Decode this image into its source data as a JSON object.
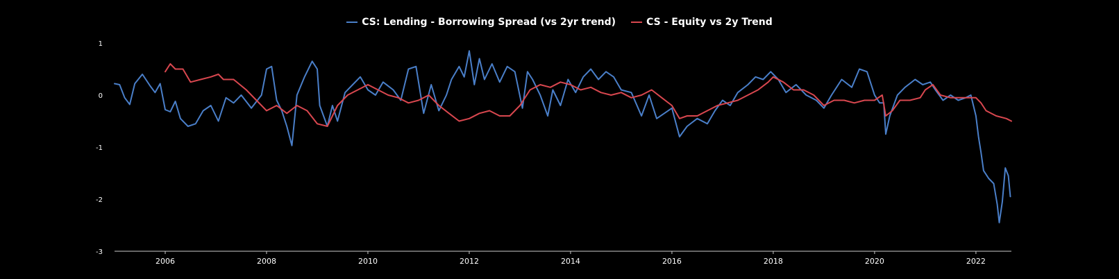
{
  "chart_data": {
    "type": "line",
    "legend_placement": "top-center",
    "grid": false,
    "xlim": [
      2005.0,
      2022.7
    ],
    "ylim": [
      -3,
      1
    ],
    "x_ticks": [
      2006,
      2008,
      2010,
      2012,
      2014,
      2016,
      2018,
      2020,
      2022
    ],
    "y_ticks": [
      1,
      0,
      -1,
      -2,
      -3
    ],
    "x_tick_labels": [
      "2006",
      "2008",
      "2010",
      "2012",
      "2014",
      "2016",
      "2018",
      "2020",
      "2022"
    ],
    "y_tick_labels": [
      "1",
      "0",
      "-1",
      "-2",
      "-3"
    ],
    "series": [
      {
        "name": "CS: Lending - Borrowing Spread (vs 2yr trend)",
        "color": "#4a7fc9",
        "points": [
          [
            2005.0,
            0.22
          ],
          [
            2005.1,
            0.2
          ],
          [
            2005.2,
            -0.05
          ],
          [
            2005.3,
            -0.18
          ],
          [
            2005.4,
            0.22
          ],
          [
            2005.55,
            0.4
          ],
          [
            2005.7,
            0.18
          ],
          [
            2005.8,
            0.05
          ],
          [
            2005.9,
            0.22
          ],
          [
            2006.0,
            -0.28
          ],
          [
            2006.1,
            -0.32
          ],
          [
            2006.2,
            -0.12
          ],
          [
            2006.3,
            -0.45
          ],
          [
            2006.45,
            -0.6
          ],
          [
            2006.6,
            -0.55
          ],
          [
            2006.75,
            -0.3
          ],
          [
            2006.9,
            -0.2
          ],
          [
            2007.05,
            -0.5
          ],
          [
            2007.2,
            -0.05
          ],
          [
            2007.35,
            -0.15
          ],
          [
            2007.5,
            0.0
          ],
          [
            2007.7,
            -0.25
          ],
          [
            2007.9,
            0.0
          ],
          [
            2008.0,
            0.5
          ],
          [
            2008.1,
            0.55
          ],
          [
            2008.2,
            -0.1
          ],
          [
            2008.3,
            -0.3
          ],
          [
            2008.4,
            -0.6
          ],
          [
            2008.5,
            -0.97
          ],
          [
            2008.6,
            0.0
          ],
          [
            2008.75,
            0.35
          ],
          [
            2008.9,
            0.65
          ],
          [
            2009.0,
            0.5
          ],
          [
            2009.05,
            -0.2
          ],
          [
            2009.2,
            -0.6
          ],
          [
            2009.3,
            -0.2
          ],
          [
            2009.4,
            -0.5
          ],
          [
            2009.55,
            0.05
          ],
          [
            2009.7,
            0.2
          ],
          [
            2009.85,
            0.35
          ],
          [
            2010.0,
            0.1
          ],
          [
            2010.15,
            0.0
          ],
          [
            2010.3,
            0.25
          ],
          [
            2010.5,
            0.1
          ],
          [
            2010.65,
            -0.1
          ],
          [
            2010.8,
            0.5
          ],
          [
            2010.95,
            0.55
          ],
          [
            2011.1,
            -0.35
          ],
          [
            2011.25,
            0.2
          ],
          [
            2011.4,
            -0.3
          ],
          [
            2011.55,
            0.0
          ],
          [
            2011.65,
            0.3
          ],
          [
            2011.8,
            0.55
          ],
          [
            2011.9,
            0.35
          ],
          [
            2012.0,
            0.85
          ],
          [
            2012.1,
            0.2
          ],
          [
            2012.2,
            0.7
          ],
          [
            2012.3,
            0.3
          ],
          [
            2012.45,
            0.6
          ],
          [
            2012.6,
            0.25
          ],
          [
            2012.75,
            0.55
          ],
          [
            2012.9,
            0.45
          ],
          [
            2013.05,
            -0.25
          ],
          [
            2013.15,
            0.45
          ],
          [
            2013.25,
            0.3
          ],
          [
            2013.4,
            0.0
          ],
          [
            2013.55,
            -0.4
          ],
          [
            2013.65,
            0.1
          ],
          [
            2013.8,
            -0.2
          ],
          [
            2013.95,
            0.3
          ],
          [
            2014.1,
            0.05
          ],
          [
            2014.25,
            0.35
          ],
          [
            2014.4,
            0.5
          ],
          [
            2014.55,
            0.3
          ],
          [
            2014.7,
            0.45
          ],
          [
            2014.85,
            0.35
          ],
          [
            2015.0,
            0.1
          ],
          [
            2015.2,
            0.05
          ],
          [
            2015.4,
            -0.4
          ],
          [
            2015.55,
            0.0
          ],
          [
            2015.7,
            -0.45
          ],
          [
            2015.85,
            -0.35
          ],
          [
            2016.0,
            -0.25
          ],
          [
            2016.15,
            -0.8
          ],
          [
            2016.3,
            -0.6
          ],
          [
            2016.5,
            -0.45
          ],
          [
            2016.7,
            -0.55
          ],
          [
            2016.85,
            -0.3
          ],
          [
            2017.0,
            -0.1
          ],
          [
            2017.15,
            -0.2
          ],
          [
            2017.3,
            0.05
          ],
          [
            2017.5,
            0.2
          ],
          [
            2017.65,
            0.35
          ],
          [
            2017.8,
            0.3
          ],
          [
            2017.95,
            0.45
          ],
          [
            2018.1,
            0.3
          ],
          [
            2018.25,
            0.05
          ],
          [
            2018.45,
            0.2
          ],
          [
            2018.65,
            0.0
          ],
          [
            2018.85,
            -0.1
          ],
          [
            2019.0,
            -0.25
          ],
          [
            2019.15,
            0.0
          ],
          [
            2019.35,
            0.3
          ],
          [
            2019.55,
            0.15
          ],
          [
            2019.7,
            0.5
          ],
          [
            2019.85,
            0.45
          ],
          [
            2020.0,
            0.0
          ],
          [
            2020.1,
            -0.15
          ],
          [
            2020.18,
            -0.15
          ],
          [
            2020.22,
            -0.75
          ],
          [
            2020.3,
            -0.4
          ],
          [
            2020.45,
            0.0
          ],
          [
            2020.6,
            0.15
          ],
          [
            2020.8,
            0.3
          ],
          [
            2020.95,
            0.2
          ],
          [
            2021.1,
            0.25
          ],
          [
            2021.2,
            0.1
          ],
          [
            2021.35,
            -0.1
          ],
          [
            2021.5,
            0.0
          ],
          [
            2021.65,
            -0.1
          ],
          [
            2021.8,
            -0.05
          ],
          [
            2021.9,
            0.0
          ],
          [
            2022.0,
            -0.4
          ],
          [
            2022.05,
            -0.8
          ],
          [
            2022.1,
            -1.1
          ],
          [
            2022.15,
            -1.45
          ],
          [
            2022.25,
            -1.6
          ],
          [
            2022.35,
            -1.7
          ],
          [
            2022.42,
            -2.1
          ],
          [
            2022.46,
            -2.45
          ],
          [
            2022.52,
            -2.05
          ],
          [
            2022.58,
            -1.4
          ],
          [
            2022.64,
            -1.55
          ],
          [
            2022.68,
            -1.95
          ]
        ]
      },
      {
        "name": "CS - Equity vs 2y Trend",
        "color": "#d9474f",
        "points": [
          [
            2006.0,
            0.45
          ],
          [
            2006.1,
            0.6
          ],
          [
            2006.2,
            0.5
          ],
          [
            2006.35,
            0.5
          ],
          [
            2006.5,
            0.25
          ],
          [
            2006.7,
            0.3
          ],
          [
            2006.9,
            0.35
          ],
          [
            2007.05,
            0.4
          ],
          [
            2007.15,
            0.3
          ],
          [
            2007.35,
            0.3
          ],
          [
            2007.6,
            0.1
          ],
          [
            2007.8,
            -0.1
          ],
          [
            2008.0,
            -0.3
          ],
          [
            2008.2,
            -0.2
          ],
          [
            2008.4,
            -0.35
          ],
          [
            2008.6,
            -0.2
          ],
          [
            2008.8,
            -0.3
          ],
          [
            2009.0,
            -0.55
          ],
          [
            2009.2,
            -0.6
          ],
          [
            2009.4,
            -0.2
          ],
          [
            2009.6,
            0.0
          ],
          [
            2009.8,
            0.1
          ],
          [
            2010.0,
            0.2
          ],
          [
            2010.2,
            0.1
          ],
          [
            2010.4,
            0.0
          ],
          [
            2010.6,
            -0.05
          ],
          [
            2010.8,
            -0.15
          ],
          [
            2011.0,
            -0.1
          ],
          [
            2011.2,
            0.0
          ],
          [
            2011.4,
            -0.2
          ],
          [
            2011.6,
            -0.35
          ],
          [
            2011.8,
            -0.5
          ],
          [
            2012.0,
            -0.45
          ],
          [
            2012.2,
            -0.35
          ],
          [
            2012.4,
            -0.3
          ],
          [
            2012.6,
            -0.4
          ],
          [
            2012.8,
            -0.4
          ],
          [
            2013.0,
            -0.2
          ],
          [
            2013.2,
            0.1
          ],
          [
            2013.4,
            0.2
          ],
          [
            2013.6,
            0.15
          ],
          [
            2013.8,
            0.25
          ],
          [
            2014.0,
            0.2
          ],
          [
            2014.2,
            0.1
          ],
          [
            2014.4,
            0.15
          ],
          [
            2014.6,
            0.05
          ],
          [
            2014.8,
            0.0
          ],
          [
            2015.0,
            0.05
          ],
          [
            2015.2,
            -0.05
          ],
          [
            2015.4,
            0.0
          ],
          [
            2015.6,
            0.1
          ],
          [
            2015.8,
            -0.05
          ],
          [
            2016.0,
            -0.2
          ],
          [
            2016.15,
            -0.45
          ],
          [
            2016.3,
            -0.4
          ],
          [
            2016.5,
            -0.4
          ],
          [
            2016.7,
            -0.3
          ],
          [
            2016.9,
            -0.2
          ],
          [
            2017.1,
            -0.15
          ],
          [
            2017.3,
            -0.1
          ],
          [
            2017.5,
            0.0
          ],
          [
            2017.7,
            0.1
          ],
          [
            2017.9,
            0.25
          ],
          [
            2018.0,
            0.35
          ],
          [
            2018.2,
            0.25
          ],
          [
            2018.4,
            0.1
          ],
          [
            2018.6,
            0.1
          ],
          [
            2018.8,
            0.0
          ],
          [
            2019.0,
            -0.2
          ],
          [
            2019.2,
            -0.1
          ],
          [
            2019.4,
            -0.1
          ],
          [
            2019.6,
            -0.15
          ],
          [
            2019.8,
            -0.1
          ],
          [
            2020.0,
            -0.1
          ],
          [
            2020.15,
            0.0
          ],
          [
            2020.22,
            -0.4
          ],
          [
            2020.35,
            -0.3
          ],
          [
            2020.5,
            -0.1
          ],
          [
            2020.7,
            -0.1
          ],
          [
            2020.9,
            -0.05
          ],
          [
            2021.0,
            0.1
          ],
          [
            2021.15,
            0.2
          ],
          [
            2021.3,
            0.0
          ],
          [
            2021.5,
            -0.05
          ],
          [
            2021.7,
            -0.05
          ],
          [
            2021.9,
            -0.05
          ],
          [
            2022.0,
            -0.05
          ],
          [
            2022.1,
            -0.15
          ],
          [
            2022.2,
            -0.3
          ],
          [
            2022.4,
            -0.4
          ],
          [
            2022.6,
            -0.45
          ],
          [
            2022.7,
            -0.5
          ]
        ]
      }
    ]
  }
}
